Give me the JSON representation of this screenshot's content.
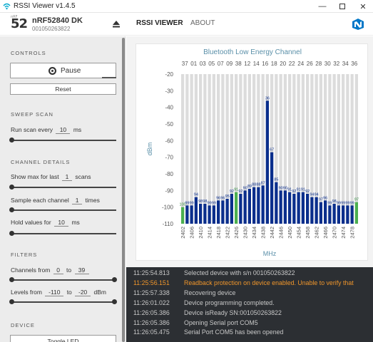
{
  "window": {
    "title": "RSSI Viewer v1.4.5"
  },
  "header": {
    "logo_text": "52",
    "logo_sup": "nRF",
    "device_name": "nRF52840 DK",
    "device_serial": "001050263822",
    "tabs": [
      {
        "label": "RSSI VIEWER",
        "active": true
      },
      {
        "label": "ABOUT",
        "active": false
      }
    ]
  },
  "sidebar": {
    "controls": {
      "heading": "CONTROLS",
      "pause_label": "Pause",
      "reset_label": "Reset"
    },
    "sweep": {
      "heading": "SWEEP SCAN",
      "label_prefix": "Run scan every",
      "value": "10",
      "unit": "ms",
      "level": 0.0
    },
    "channel": {
      "heading": "CHANNEL DETAILS",
      "show_max": {
        "prefix": "Show max for last",
        "value": "1",
        "unit": "scans",
        "level": 0.0
      },
      "sample": {
        "prefix": "Sample each channel",
        "value": "1",
        "unit": "times",
        "level": 0.0
      },
      "hold": {
        "prefix": "Hold values for",
        "value": "10",
        "unit": "ms",
        "level": 0.0
      }
    },
    "filters": {
      "heading": "FILTERS",
      "channels": {
        "prefix": "Channels from",
        "from": "0",
        "to_word": "to",
        "to": "39"
      },
      "levels": {
        "prefix": "Levels from",
        "from": "-110",
        "to_word": "to",
        "to": "-20",
        "unit": "dBm"
      }
    },
    "device": {
      "heading": "DEVICE",
      "toggle_led_label": "Toggle LED"
    }
  },
  "chart_data": {
    "type": "bar",
    "title": "Bluetooth Low Energy Channel",
    "xlabel": "MHz",
    "ylabel": "dBm",
    "ylim": [
      -110,
      -20
    ],
    "yticks": [
      -20,
      -30,
      -40,
      -50,
      -60,
      -70,
      -80,
      -90,
      -100,
      -110
    ],
    "top_channel_labels": [
      "37",
      "01",
      "03",
      "05",
      "07",
      "09",
      "38",
      "12",
      "14",
      "16",
      "18",
      "20",
      "22",
      "24",
      "26",
      "28",
      "30",
      "32",
      "34",
      "36"
    ],
    "x_tick_labels": [
      "2402",
      "2406",
      "2410",
      "2414",
      "2418",
      "2422",
      "2426",
      "2430",
      "2434",
      "2438",
      "2442",
      "2446",
      "2450",
      "2454",
      "2458",
      "2462",
      "2466",
      "2470",
      "2474",
      "2478"
    ],
    "advertising_color": "#4caf50",
    "data_color": "#0a2e8c",
    "background_bar_color": "#dcdcdc",
    "frequencies": [
      2402,
      2404,
      2406,
      2408,
      2410,
      2412,
      2414,
      2416,
      2418,
      2420,
      2422,
      2424,
      2426,
      2428,
      2430,
      2432,
      2434,
      2436,
      2438,
      2440,
      2442,
      2444,
      2446,
      2448,
      2450,
      2452,
      2454,
      2456,
      2458,
      2460,
      2462,
      2464,
      2466,
      2468,
      2470,
      2472,
      2474,
      2476,
      2478,
      2480
    ],
    "values": [
      -100,
      -99,
      -99,
      -94,
      -98,
      -98,
      -99,
      -99,
      -96,
      -96,
      -95,
      -92,
      -91,
      -92,
      -90,
      -89,
      -88,
      -88,
      -87,
      -36,
      -67,
      -85,
      -90,
      -90,
      -91,
      -92,
      -91,
      -91,
      -92,
      -94,
      -94,
      -97,
      -96,
      -99,
      -98,
      -99,
      -99,
      -99,
      -99,
      -97
    ],
    "data_labels": [
      "100",
      "99",
      "99",
      "94",
      "98",
      "98",
      "99",
      "99",
      "96",
      "96",
      "95",
      "92",
      "91",
      "92",
      "90",
      "89",
      "88",
      "88",
      "87",
      "36",
      "67",
      "85",
      "90",
      "90",
      "91",
      "92",
      "91",
      "91",
      "92",
      "94",
      "94",
      "97",
      "96",
      "99",
      "98",
      "99",
      "99",
      "99",
      "99",
      "97"
    ],
    "advertising_frequencies": [
      2402,
      2426,
      2480
    ]
  },
  "log": [
    {
      "time": "11:25:54.813",
      "message": "Selected device with s/n 001050263822",
      "level": "info"
    },
    {
      "time": "11:25:56.151",
      "message": "Readback protection on device enabled. Unable to verify that",
      "level": "warn"
    },
    {
      "time": "11:25:57.338",
      "message": "Recovering device",
      "level": "info"
    },
    {
      "time": "11:26:01.022",
      "message": "Device programming completed.",
      "level": "info"
    },
    {
      "time": "11:26:05.386",
      "message": "Device isReady SN:001050263822",
      "level": "info"
    },
    {
      "time": "11:26:05.386",
      "message": "Opening Serial port COM5",
      "level": "info"
    },
    {
      "time": "11:26:05.475",
      "message": "Serial Port COM5 has been opened",
      "level": "info"
    }
  ]
}
